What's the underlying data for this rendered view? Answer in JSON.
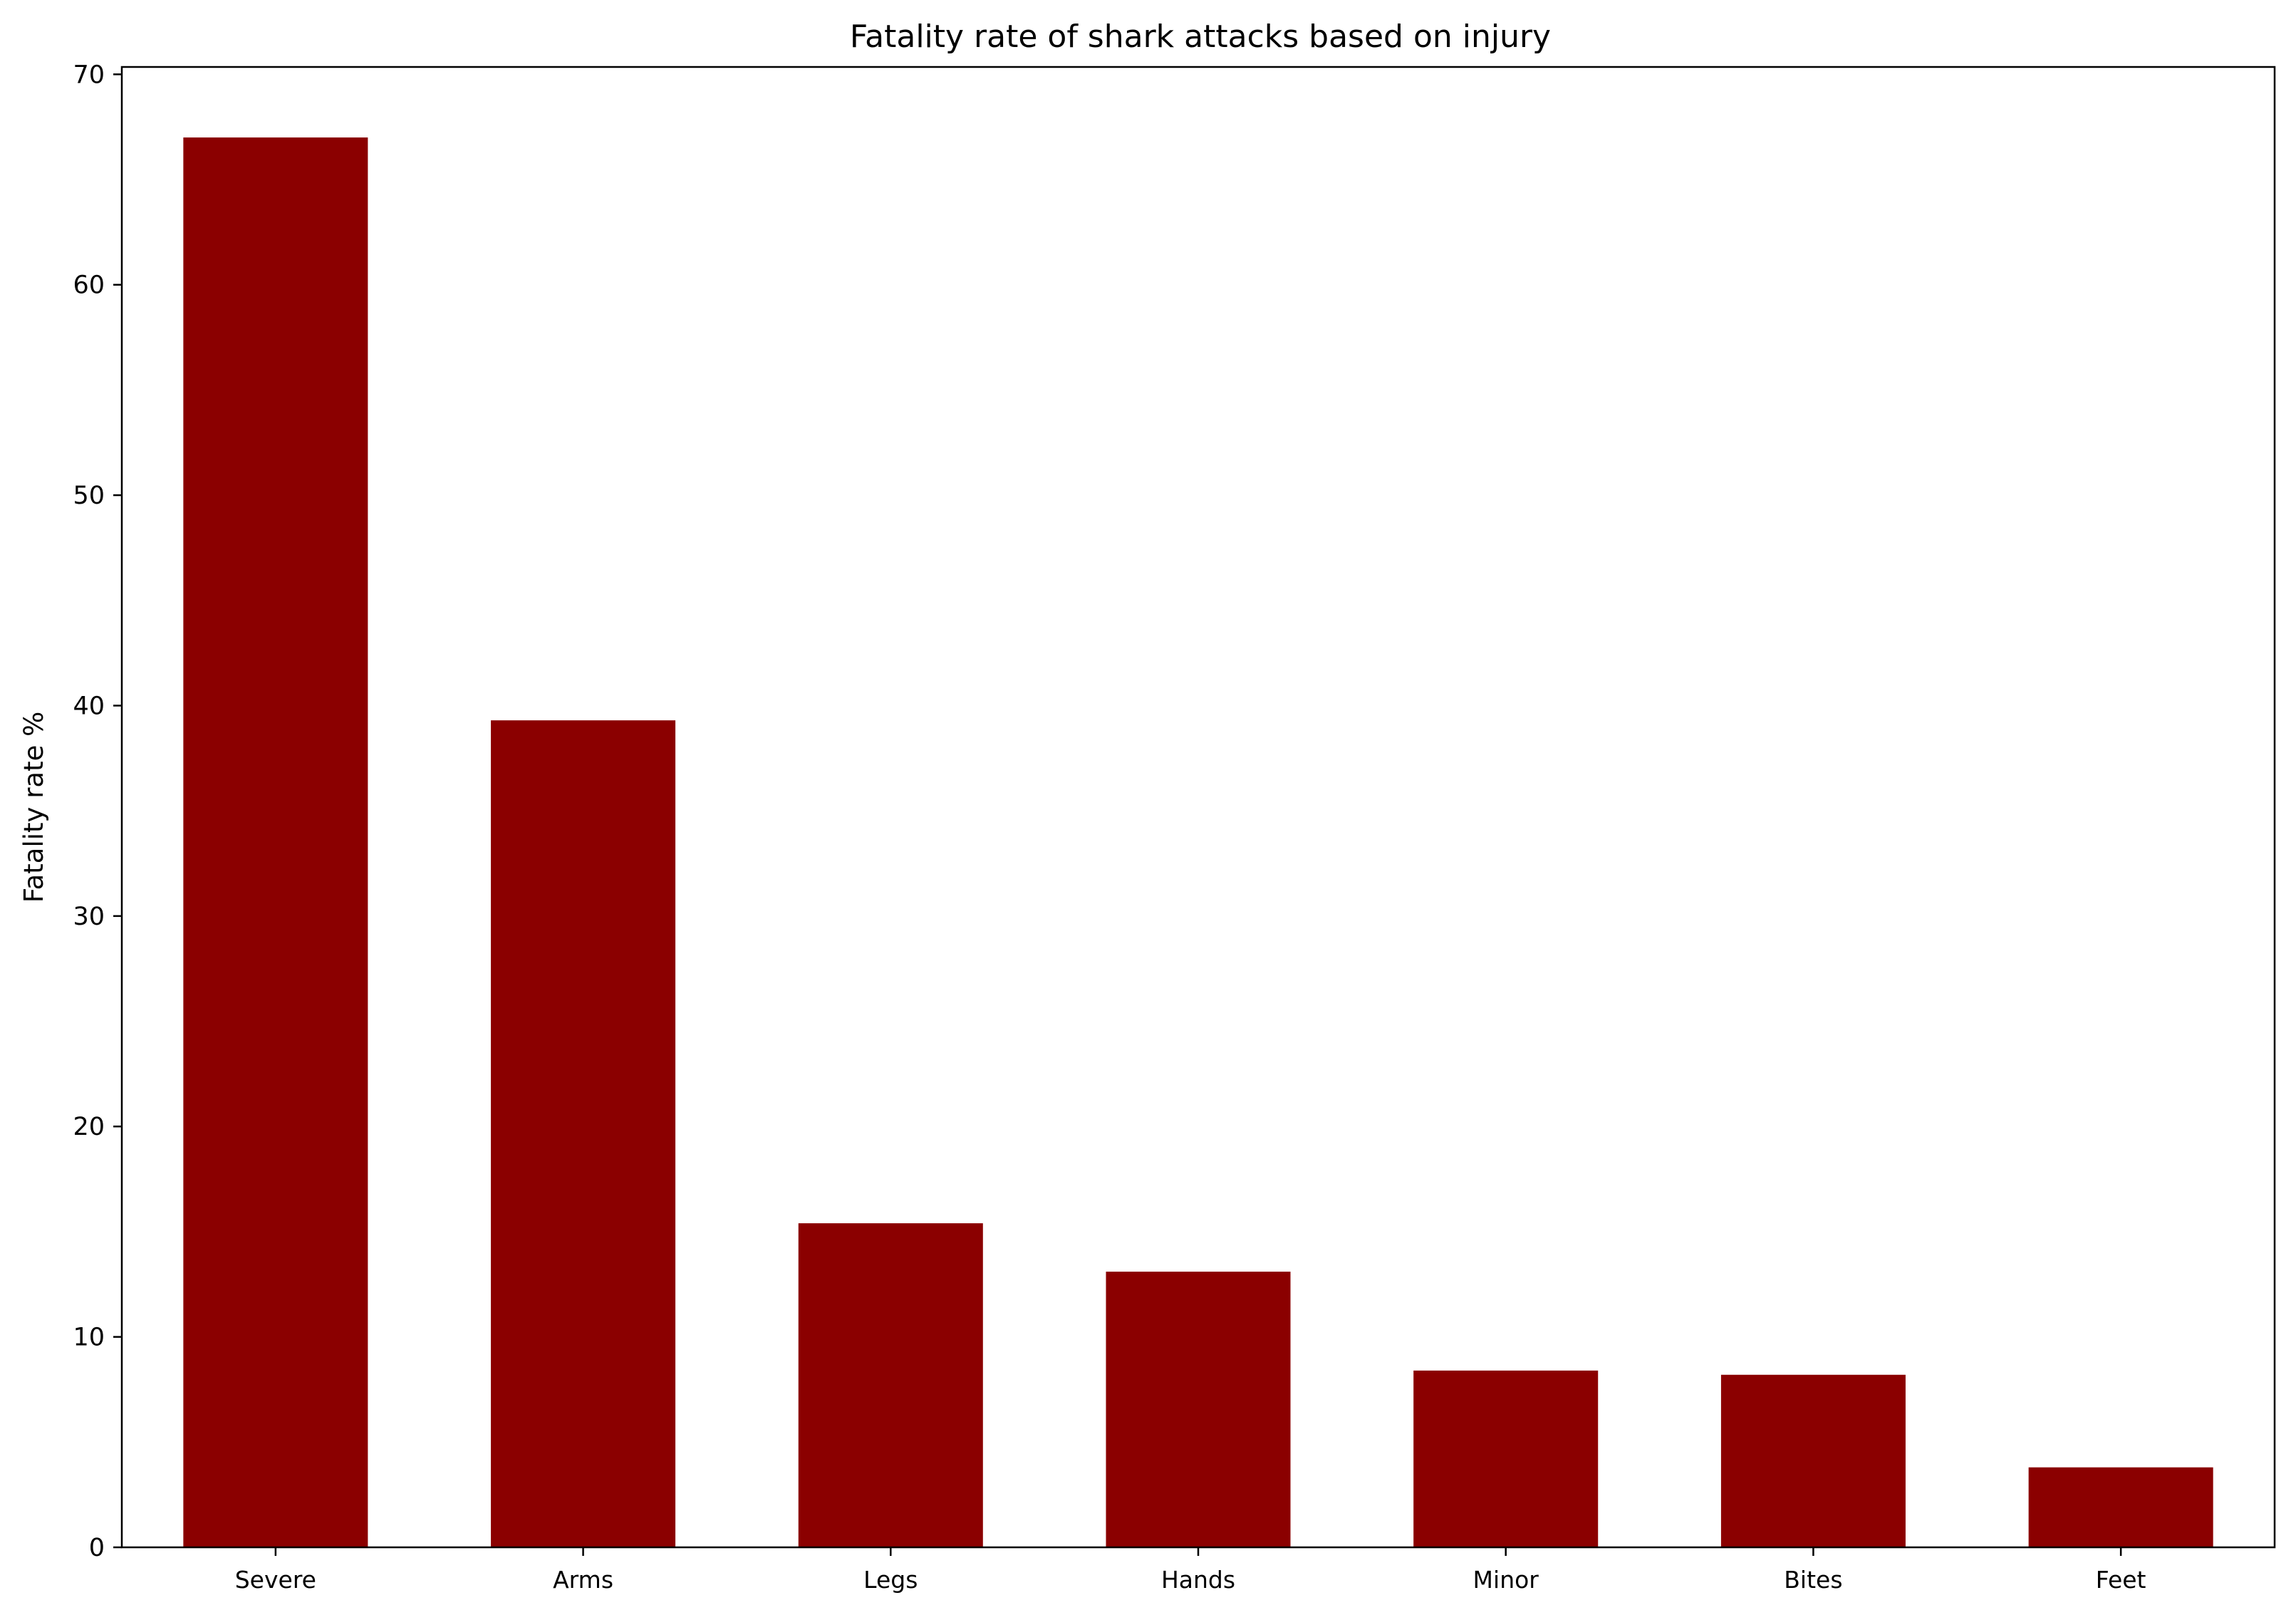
{
  "chart_data": {
    "type": "bar",
    "title": "Fatality rate of shark attacks based on injury",
    "xlabel": "",
    "ylabel": "Fatality rate %",
    "categories": [
      "Severe",
      "Arms",
      "Legs",
      "Hands",
      "Minor",
      "Bites",
      "Feet"
    ],
    "values": [
      67.0,
      39.3,
      15.4,
      13.1,
      8.4,
      8.2,
      3.8
    ],
    "ylim": [
      0,
      70.35
    ],
    "yticks": [
      0,
      10,
      20,
      30,
      40,
      50,
      60,
      70
    ],
    "ytick_labels": [
      "0",
      "10",
      "20",
      "30",
      "40",
      "50",
      "60",
      "70"
    ],
    "grid": false,
    "legend": "none",
    "bar_color": "#8b0000"
  }
}
